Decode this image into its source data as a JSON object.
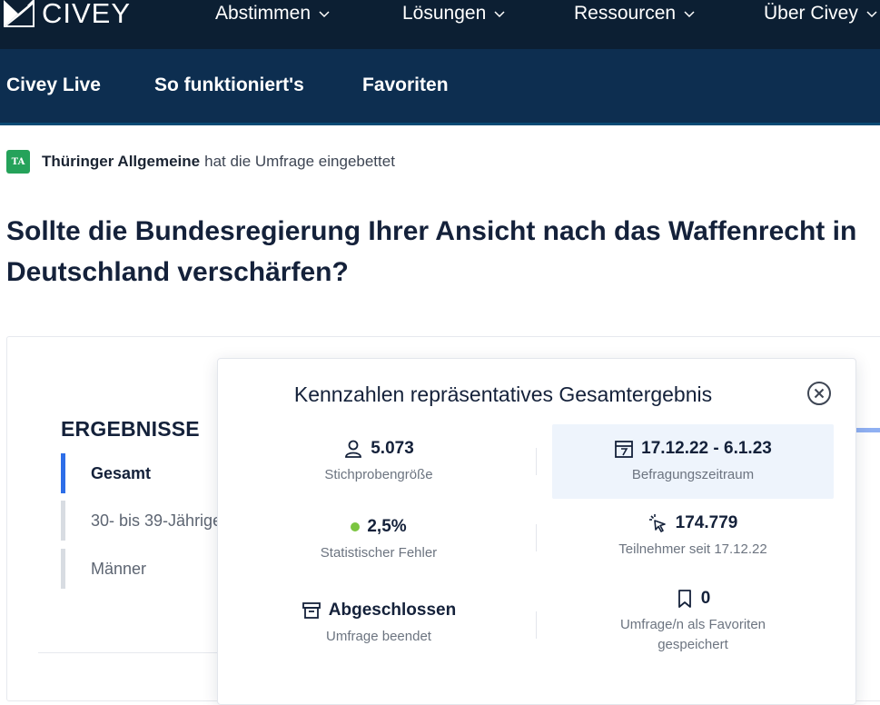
{
  "brand": {
    "name": "CIVEY"
  },
  "top_nav": {
    "items": [
      {
        "label": "Abstimmen"
      },
      {
        "label": "Lösungen"
      },
      {
        "label": "Ressourcen"
      },
      {
        "label": "Über Civey"
      }
    ]
  },
  "sub_nav": {
    "items": [
      {
        "label": "Civey Live"
      },
      {
        "label": "So funktioniert's"
      },
      {
        "label": "Favoriten"
      }
    ]
  },
  "embed": {
    "badge": "TA",
    "publisher": "Thüringer Allgemeine",
    "text": "hat die Umfrage eingebettet"
  },
  "question": {
    "line1": "Sollte die Bundesregierung Ihrer Ansicht nach das Waffenrecht in",
    "line2": "Deutschland verschärfen?"
  },
  "results": {
    "title": "ERGEBNISSE",
    "items": [
      {
        "label": "Gesamt",
        "active": true
      },
      {
        "label": "30- bis 39-Jährige",
        "active": false
      },
      {
        "label": "Männer",
        "active": false
      }
    ]
  },
  "popup": {
    "title": "Kennzahlen repräsentatives Gesamtergebnis",
    "stats": {
      "sample": {
        "value": "5.073",
        "label": "Stichprobengröße",
        "icon": "person-icon"
      },
      "period": {
        "value": "17.12.22 - 6.1.23",
        "label": "Befragungszeitraum",
        "icon": "calendar-icon"
      },
      "error": {
        "value": "2,5%",
        "label": "Statistischer Fehler",
        "icon": "status-dot",
        "color": "#7bc540"
      },
      "participants": {
        "value": "174.779",
        "label": "Teilnehmer seit 17.12.22",
        "icon": "cursor-click-icon"
      },
      "status": {
        "value": "Abgeschlossen",
        "label": "Umfrage beendet",
        "icon": "archive-icon"
      },
      "favorites": {
        "value": "0",
        "label_line1": "Umfrage/n als Favoriten",
        "label_line2": "gespeichert",
        "icon": "bookmark-icon"
      }
    }
  },
  "colors": {
    "nav_bg": "#0c1f33",
    "subnav_bg": "#0d2e50",
    "active_accent": "#2d6ee8",
    "badge_green": "#25a25a",
    "highlight_bg": "#eef4fc"
  }
}
